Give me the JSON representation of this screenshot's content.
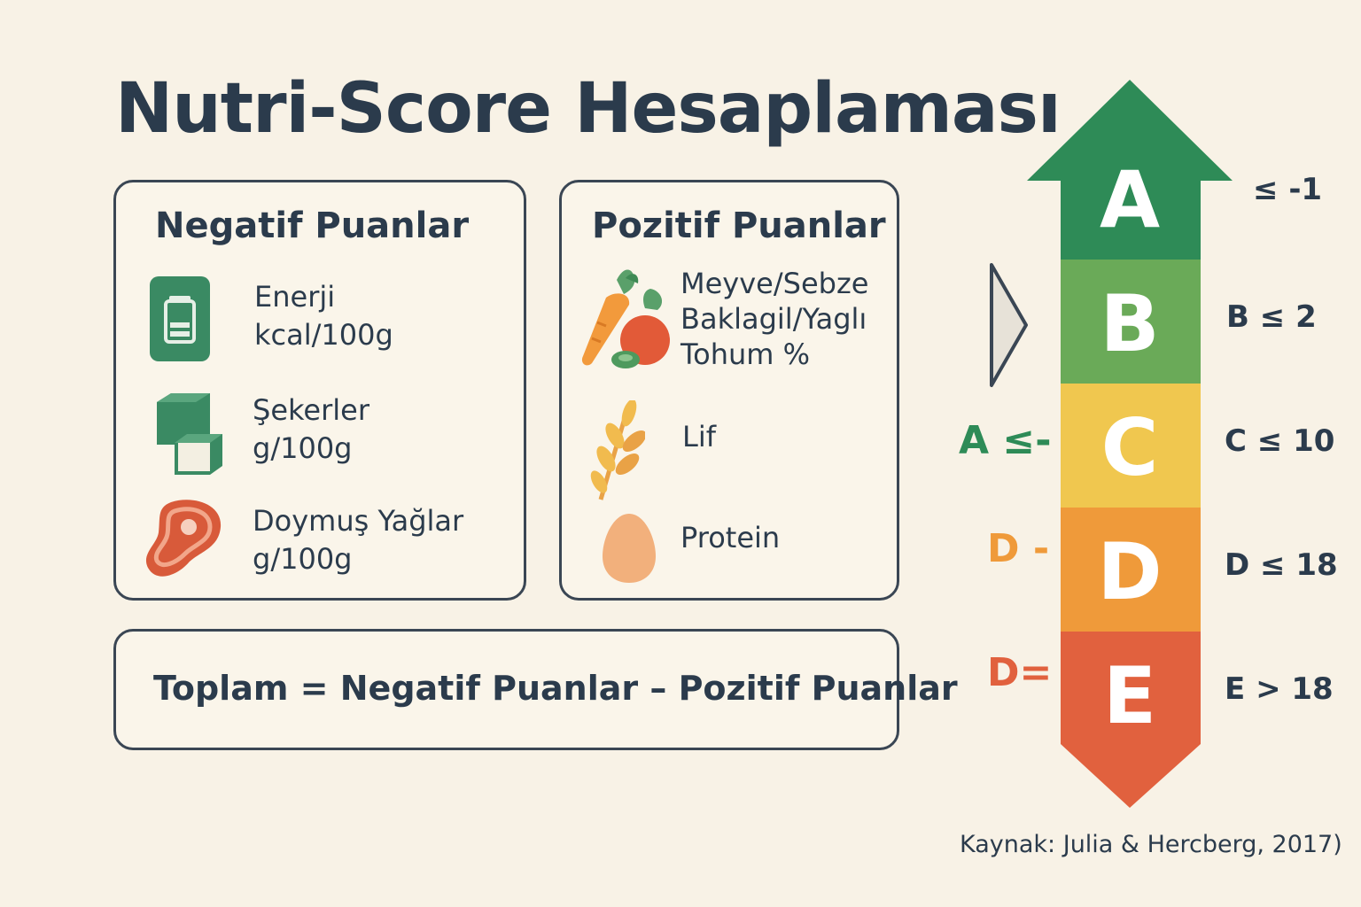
{
  "title": "Nutri-Score Hesaplaması",
  "negative": {
    "title": "Negatif Puanlar",
    "items": [
      {
        "icon": "battery-icon",
        "name": "Enerji",
        "unit": "kcal/100g"
      },
      {
        "icon": "sugar-cubes-icon",
        "name": "Şekerler",
        "unit": "g/100g"
      },
      {
        "icon": "meat-steak-icon",
        "name": "Doymuş Yağlar",
        "unit": "g/100g"
      }
    ]
  },
  "positive": {
    "title": "Pozitif Puanlar",
    "items": [
      {
        "icon": "vegetables-icon",
        "line1": "Meyve/Sebze",
        "line2": "Baklagil/Yaglı",
        "line3": "Tohum %"
      },
      {
        "icon": "wheat-icon",
        "line1": "Lif"
      },
      {
        "icon": "egg-icon",
        "line1": "Protein"
      }
    ]
  },
  "total": "Toplam = Negatif Puanlar – Pozitif Puanlar",
  "scale": {
    "grades": [
      {
        "letter": "A",
        "color": "#2e8b57",
        "threshold": "≤ -1"
      },
      {
        "letter": "B",
        "color": "#6aaa58",
        "threshold": "B ≤ 2"
      },
      {
        "letter": "C",
        "color": "#f0c74f",
        "threshold": "C ≤ 10"
      },
      {
        "letter": "D",
        "color": "#ef9a3a",
        "threshold": "D ≤ 18"
      },
      {
        "letter": "E",
        "color": "#e1613e",
        "threshold": "E > 18"
      }
    ],
    "side_labels": [
      {
        "text": "A ≤-",
        "color": "#2e8b57"
      },
      {
        "text": "D -",
        "color": "#ef9a3a"
      },
      {
        "text": "D=",
        "color": "#e1613e"
      }
    ]
  },
  "source": "Kaynak: Julia & Hercberg, 2017)"
}
